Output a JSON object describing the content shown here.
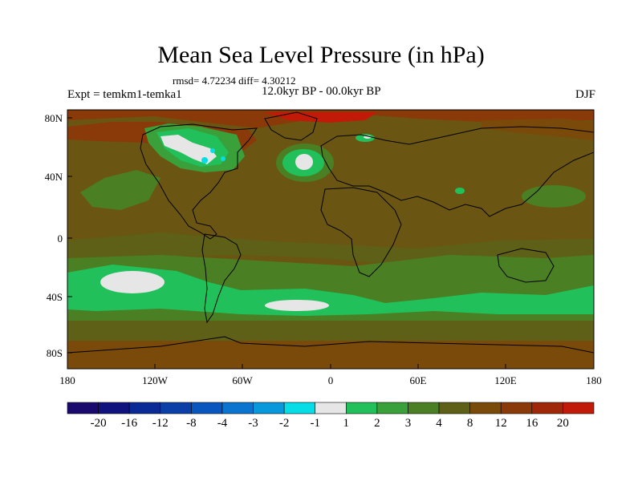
{
  "title": "Mean Sea Level Pressure (in hPa)",
  "stats": "rmsd= 4.72234 diff= 4.30212",
  "expt_label": "Expt = temkm1-temka1",
  "period_label": "12.0kyr BP - 00.0kyr BP",
  "season_label": "DJF",
  "lat_ticks": [
    "80N",
    "40N",
    "0",
    "40S",
    "80S"
  ],
  "lon_ticks": [
    "180",
    "120W",
    "60W",
    "0",
    "60E",
    "120E",
    "180"
  ],
  "colorbar": {
    "labels": [
      "-20",
      "-16",
      "-12",
      "-8",
      "-4",
      "-3",
      "-2",
      "-1",
      "1",
      "2",
      "3",
      "4",
      "8",
      "12",
      "16",
      "20"
    ],
    "colors": [
      "#1a0a6e",
      "#10127e",
      "#0a2a96",
      "#0b3fa8",
      "#0a56bf",
      "#0a74cf",
      "#0a98dc",
      "#06dde6",
      "#e6e6e6",
      "#22c05a",
      "#3aa03a",
      "#4a7f24",
      "#5d6016",
      "#7a4a0a",
      "#8a3a08",
      "#9e2808",
      "#c21a08"
    ]
  },
  "colors": {
    "background": "#6a5612",
    "land_outline": "#000000",
    "green_light": "#22c05a",
    "green_mid": "#3aa03a",
    "olive": "#4a7f24",
    "red_brown": "#8a3a08",
    "red": "#c21a08",
    "white": "#e6e6e6",
    "cyan": "#06dde6"
  },
  "map": {
    "lon_min": -180,
    "lon_max": 180,
    "lat_min": -90,
    "lat_max": 90
  }
}
